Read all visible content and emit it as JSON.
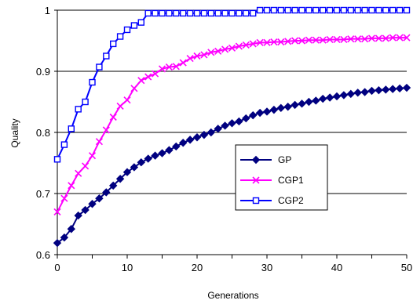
{
  "chart_data": {
    "type": "line",
    "title": "",
    "xlabel": "Generations",
    "ylabel": "Quality",
    "xlim": [
      0,
      50
    ],
    "ylim": [
      0.6,
      1.0
    ],
    "xticks": [
      "0",
      "10",
      "20",
      "30",
      "40",
      "50"
    ],
    "yticks": [
      "0.6",
      "0.7",
      "0.8",
      "0.9",
      "1"
    ],
    "grid": "horizontal",
    "legend_position": "center-right",
    "series": [
      {
        "name": "GP",
        "color": "#000080",
        "marker": "diamond",
        "values": [
          0.619,
          0.628,
          0.642,
          0.664,
          0.673,
          0.683,
          0.692,
          0.702,
          0.713,
          0.724,
          0.735,
          0.743,
          0.751,
          0.757,
          0.762,
          0.766,
          0.771,
          0.777,
          0.783,
          0.788,
          0.792,
          0.796,
          0.8,
          0.806,
          0.811,
          0.815,
          0.818,
          0.823,
          0.828,
          0.832,
          0.834,
          0.837,
          0.84,
          0.842,
          0.845,
          0.847,
          0.85,
          0.852,
          0.855,
          0.857,
          0.859,
          0.861,
          0.863,
          0.865,
          0.866,
          0.868,
          0.869,
          0.87,
          0.871,
          0.872,
          0.873
        ]
      },
      {
        "name": "CGP1",
        "color": "#ff00ff",
        "marker": "x",
        "values": [
          0.67,
          0.692,
          0.713,
          0.733,
          0.745,
          0.762,
          0.785,
          0.804,
          0.825,
          0.843,
          0.853,
          0.872,
          0.885,
          0.891,
          0.896,
          0.904,
          0.907,
          0.908,
          0.914,
          0.921,
          0.925,
          0.927,
          0.931,
          0.933,
          0.936,
          0.938,
          0.941,
          0.943,
          0.945,
          0.947,
          0.947,
          0.948,
          0.948,
          0.949,
          0.95,
          0.95,
          0.951,
          0.951,
          0.951,
          0.952,
          0.952,
          0.952,
          0.953,
          0.953,
          0.953,
          0.954,
          0.954,
          0.954,
          0.955,
          0.955,
          0.955
        ]
      },
      {
        "name": "CGP2",
        "color": "#0000ff",
        "marker": "square",
        "values": [
          0.756,
          0.78,
          0.806,
          0.838,
          0.85,
          0.882,
          0.907,
          0.925,
          0.945,
          0.957,
          0.968,
          0.975,
          0.98,
          0.995,
          0.995,
          0.995,
          0.995,
          0.995,
          0.995,
          0.995,
          0.995,
          0.995,
          0.995,
          0.995,
          0.995,
          0.995,
          0.995,
          0.995,
          0.995,
          1.0,
          1.0,
          1.0,
          1.0,
          1.0,
          1.0,
          1.0,
          1.0,
          1.0,
          1.0,
          1.0,
          1.0,
          1.0,
          1.0,
          1.0,
          1.0,
          1.0,
          1.0,
          1.0,
          1.0,
          1.0,
          1.0
        ]
      }
    ]
  }
}
